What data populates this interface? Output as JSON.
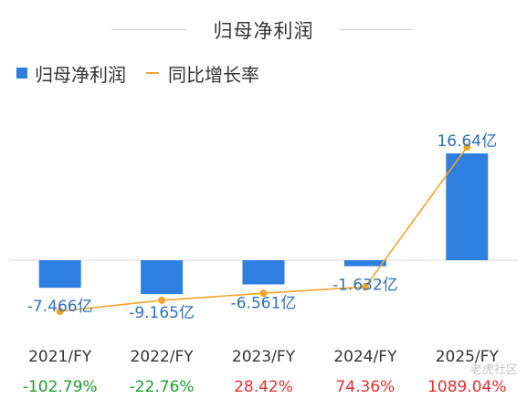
{
  "chart_data": {
    "type": "bar",
    "title": "归母净利润",
    "categories": [
      "2021/FY",
      "2022/FY",
      "2023/FY",
      "2024/FY",
      "2025/FY"
    ],
    "series": [
      {
        "name": "归母净利润",
        "type": "bar",
        "color": "#2F7FE0",
        "values": [
          -7.466,
          -9.165,
          -6.561,
          -1.632,
          16.64
        ],
        "labels": [
          "-7.466亿",
          "-9.165亿",
          "-6.561亿",
          "-1.632亿",
          "16.64亿"
        ],
        "unit": "亿"
      },
      {
        "name": "同比增长率",
        "type": "line",
        "color": "#F0A42C",
        "values": [
          -102.79,
          -22.76,
          28.42,
          74.36,
          1089.04
        ],
        "labels": [
          "-102.79%",
          "-22.76%",
          "28.42%",
          "74.36%",
          "1089.04%"
        ],
        "label_colors": [
          "#1E9E2E",
          "#1E9E2E",
          "#E03030",
          "#E03030",
          "#E03030"
        ],
        "unit": "%"
      }
    ],
    "legend_position": "top-left",
    "grid": false
  },
  "watermark": "老虎社区"
}
